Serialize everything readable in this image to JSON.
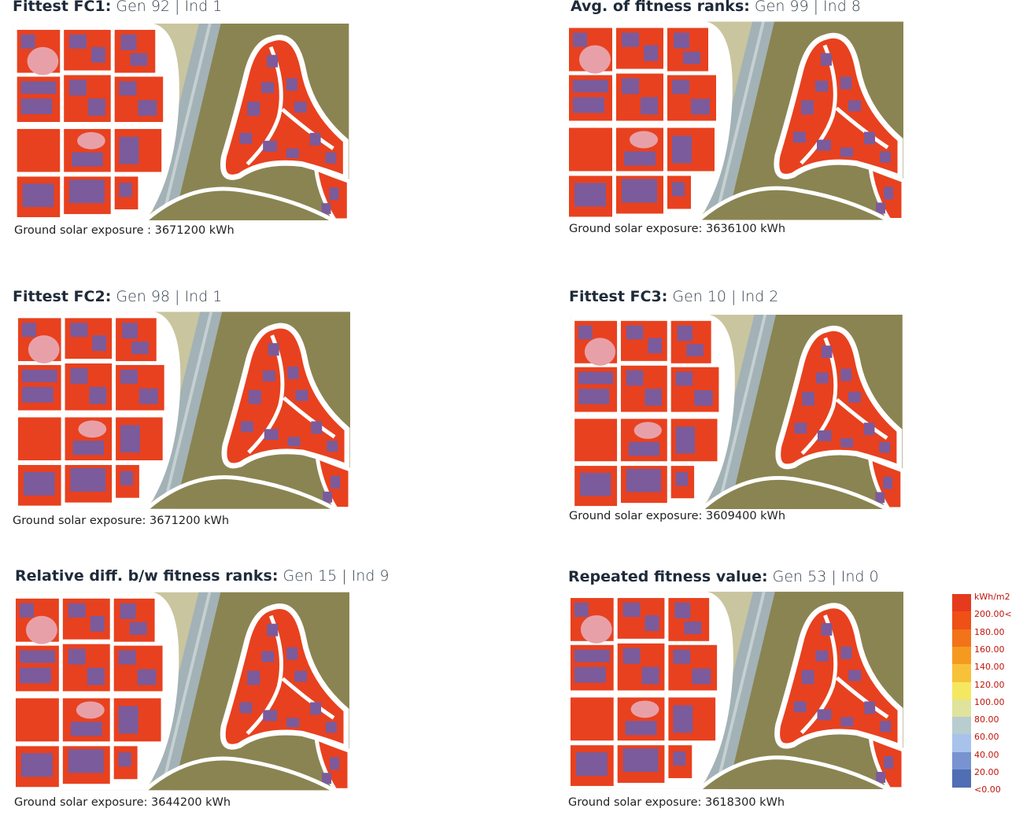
{
  "panels": [
    {
      "title": {
        "label": "Fittest FC1:",
        "detail": "Gen 92 | Ind 1"
      },
      "caption": "Ground solar exposure : 3671200 kWh"
    },
    {
      "title": {
        "label": "Avg. of fitness ranks:",
        "detail": "Gen 99 | Ind 8"
      },
      "caption": "Ground solar exposure: 3636100 kWh"
    },
    {
      "title": {
        "label": "Fittest FC2:",
        "detail": "Gen 98 | Ind 1"
      },
      "caption": "Ground solar exposure: 3671200 kWh"
    },
    {
      "title": {
        "label": "Fittest FC3:",
        "detail": "Gen 10 | Ind 2"
      },
      "caption": "Ground solar exposure: 3609400 kWh"
    },
    {
      "title": {
        "label": "Relative diff. b/w fitness ranks:",
        "detail": "Gen 15 | Ind 9"
      },
      "caption": "Ground solar exposure: 3644200 kWh"
    },
    {
      "title": {
        "label": "Repeated fitness value:",
        "detail": "Gen 53 | Ind 0"
      },
      "caption": "Ground solar exposure: 3618300 kWh"
    }
  ],
  "legend": {
    "unit": "kWh/m2",
    "labels": [
      "200.00<",
      "180.00",
      "160.00",
      "140.00",
      "120.00",
      "100.00",
      "80.00",
      "60.00",
      "40.00",
      "20.00",
      "<0.00"
    ],
    "colors": [
      "#e63a1e",
      "#ee5016",
      "#f2731a",
      "#f59a20",
      "#f7c23a",
      "#f6e760",
      "#dfe39c",
      "#b8cdd0",
      "#a7c3ec",
      "#7893cf",
      "#4f6eb3"
    ]
  }
}
